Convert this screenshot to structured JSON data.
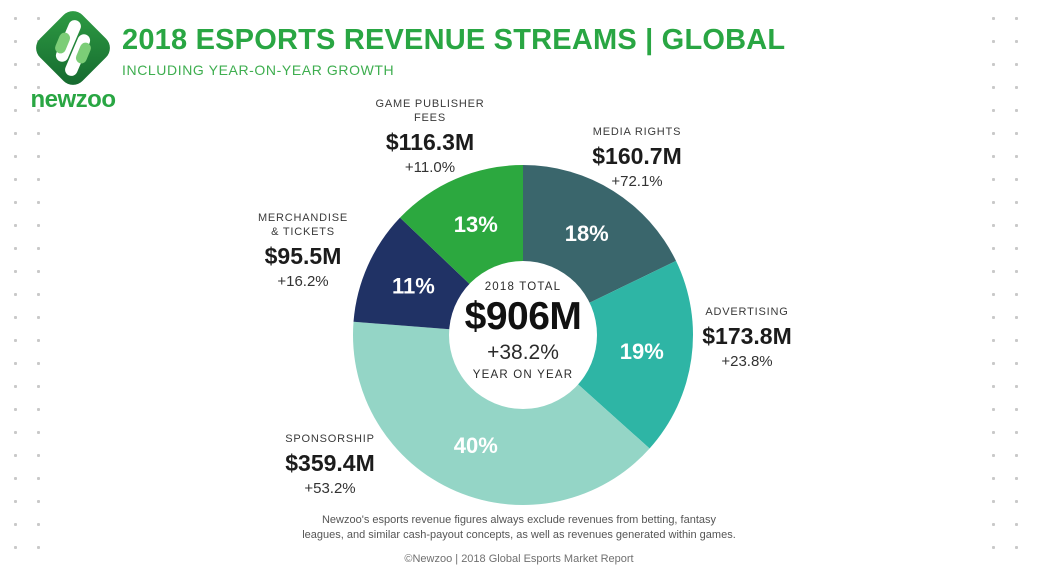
{
  "brand": {
    "logo_text": "newzoo",
    "accent_green": "#29a643"
  },
  "header": {
    "title": "2018 ESPORTS REVENUE STREAMS | GLOBAL",
    "subtitle": "INCLUDING YEAR-ON-YEAR GROWTH"
  },
  "chart_data": {
    "type": "pie",
    "donut": true,
    "title": "2018 Esports Revenue Streams | Global",
    "center": {
      "top_label": "2018 TOTAL",
      "total": "$906M",
      "growth": "+38.2%",
      "bottom_label": "YEAR ON YEAR"
    },
    "segments": [
      {
        "label": "MEDIA RIGHTS",
        "label_lines": [
          "MEDIA RIGHTS"
        ],
        "value_label": "$160.7M",
        "growth": "+72.1%",
        "percent": 18,
        "color": "#3a666c"
      },
      {
        "label": "ADVERTISING",
        "label_lines": [
          "ADVERTISING"
        ],
        "value_label": "$173.8M",
        "growth": "+23.8%",
        "percent": 19,
        "color": "#2eb5a5"
      },
      {
        "label": "SPONSORSHIP",
        "label_lines": [
          "SPONSORSHIP"
        ],
        "value_label": "$359.4M",
        "growth": "+53.2%",
        "percent": 40,
        "color": "#94d5c6"
      },
      {
        "label": "MERCHANDISE & TICKETS",
        "label_lines": [
          "MERCHANDISE",
          "& TICKETS"
        ],
        "value_label": "$95.5M",
        "growth": "+16.2%",
        "percent": 11,
        "color": "#203265"
      },
      {
        "label": "GAME PUBLISHER FEES",
        "label_lines": [
          "GAME PUBLISHER",
          "FEES"
        ],
        "value_label": "$116.3M",
        "growth": "+11.0%",
        "percent": 13,
        "color": "#2ca83f"
      }
    ]
  },
  "footer": {
    "disclaimer_line1": "Newzoo's esports revenue figures always exclude revenues from betting, fantasy",
    "disclaimer_line2": "leagues, and similar cash-payout concepts, as well as revenues generated within games.",
    "copyright": "©Newzoo | 2018 Global Esports Market Report"
  }
}
